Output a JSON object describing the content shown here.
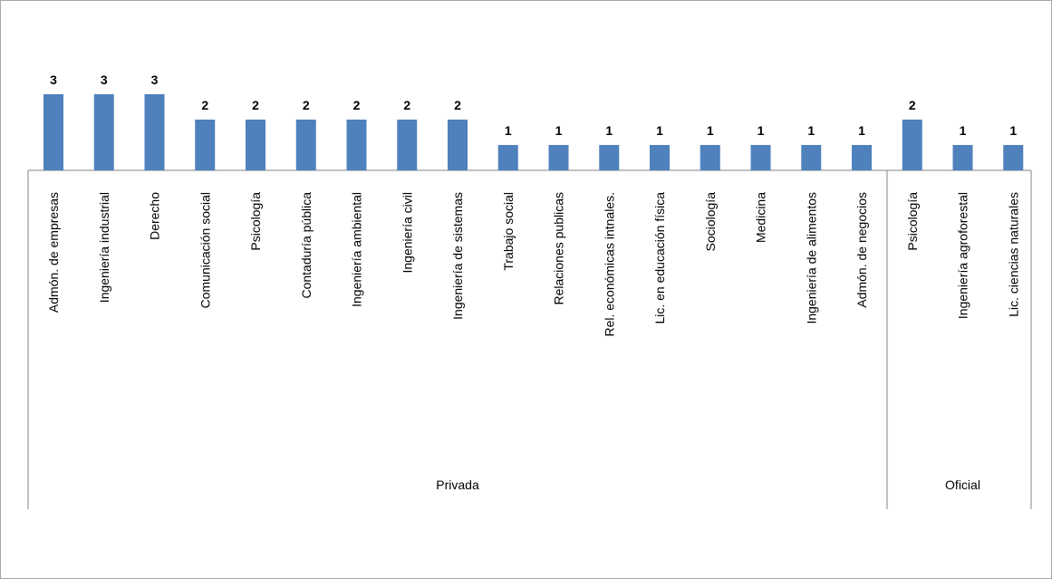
{
  "chart_data": {
    "type": "bar",
    "title": "",
    "xlabel": "",
    "ylabel": "",
    "ylim": [
      0,
      3
    ],
    "grid": false,
    "legend": "none",
    "bar_color": "#4f81bd",
    "groups": [
      {
        "name": "Privada",
        "categories": [
          "Admón. de empresas",
          "Ingeniería industrial",
          "Derecho",
          "Comunicación social",
          "Psicología",
          "Contaduría pública",
          "Ingeniería ambiental",
          "Ingeniería civil",
          "Ingeniería de sistemas",
          "Trabajo social",
          "Relaciones publicas",
          "Rel. económicas intnales.",
          "Lic. en educación física",
          "Sociología",
          "Medicina",
          "Ingeniería de alimentos",
          "Admón. de negocios"
        ],
        "values": [
          3,
          3,
          3,
          2,
          2,
          2,
          2,
          2,
          2,
          1,
          1,
          1,
          1,
          1,
          1,
          1,
          1
        ]
      },
      {
        "name": "Oficial",
        "categories": [
          "Psicología",
          "Ingeniería agroforestal",
          "Lic. ciencias naturales"
        ],
        "values": [
          2,
          1,
          1
        ]
      }
    ]
  }
}
